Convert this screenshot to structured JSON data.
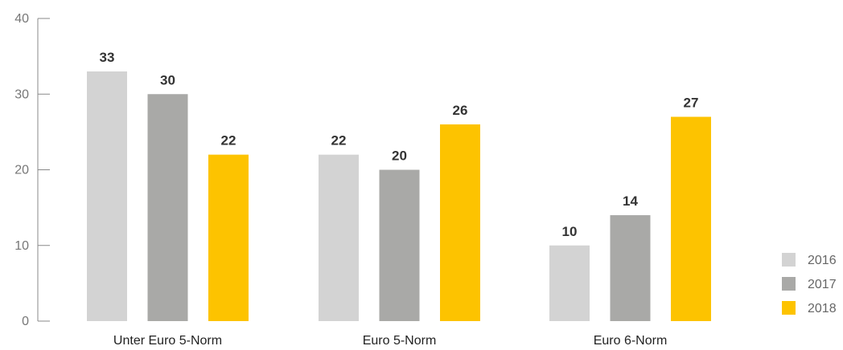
{
  "chart_data": {
    "type": "bar",
    "categories": [
      "Unter Euro 5-Norm",
      "Euro 5-Norm",
      "Euro 6-Norm"
    ],
    "series": [
      {
        "name": "2016",
        "values": [
          33,
          22,
          10
        ],
        "color": "#d3d3d3"
      },
      {
        "name": "2017",
        "values": [
          30,
          20,
          14
        ],
        "color": "#a9a9a7"
      },
      {
        "name": "2018",
        "values": [
          22,
          26,
          27
        ],
        "color": "#fdc300"
      }
    ],
    "ylim": [
      0,
      40
    ],
    "yticks": [
      0,
      10,
      20,
      30,
      40
    ],
    "grid": false,
    "legend_position": "bottom-right"
  }
}
